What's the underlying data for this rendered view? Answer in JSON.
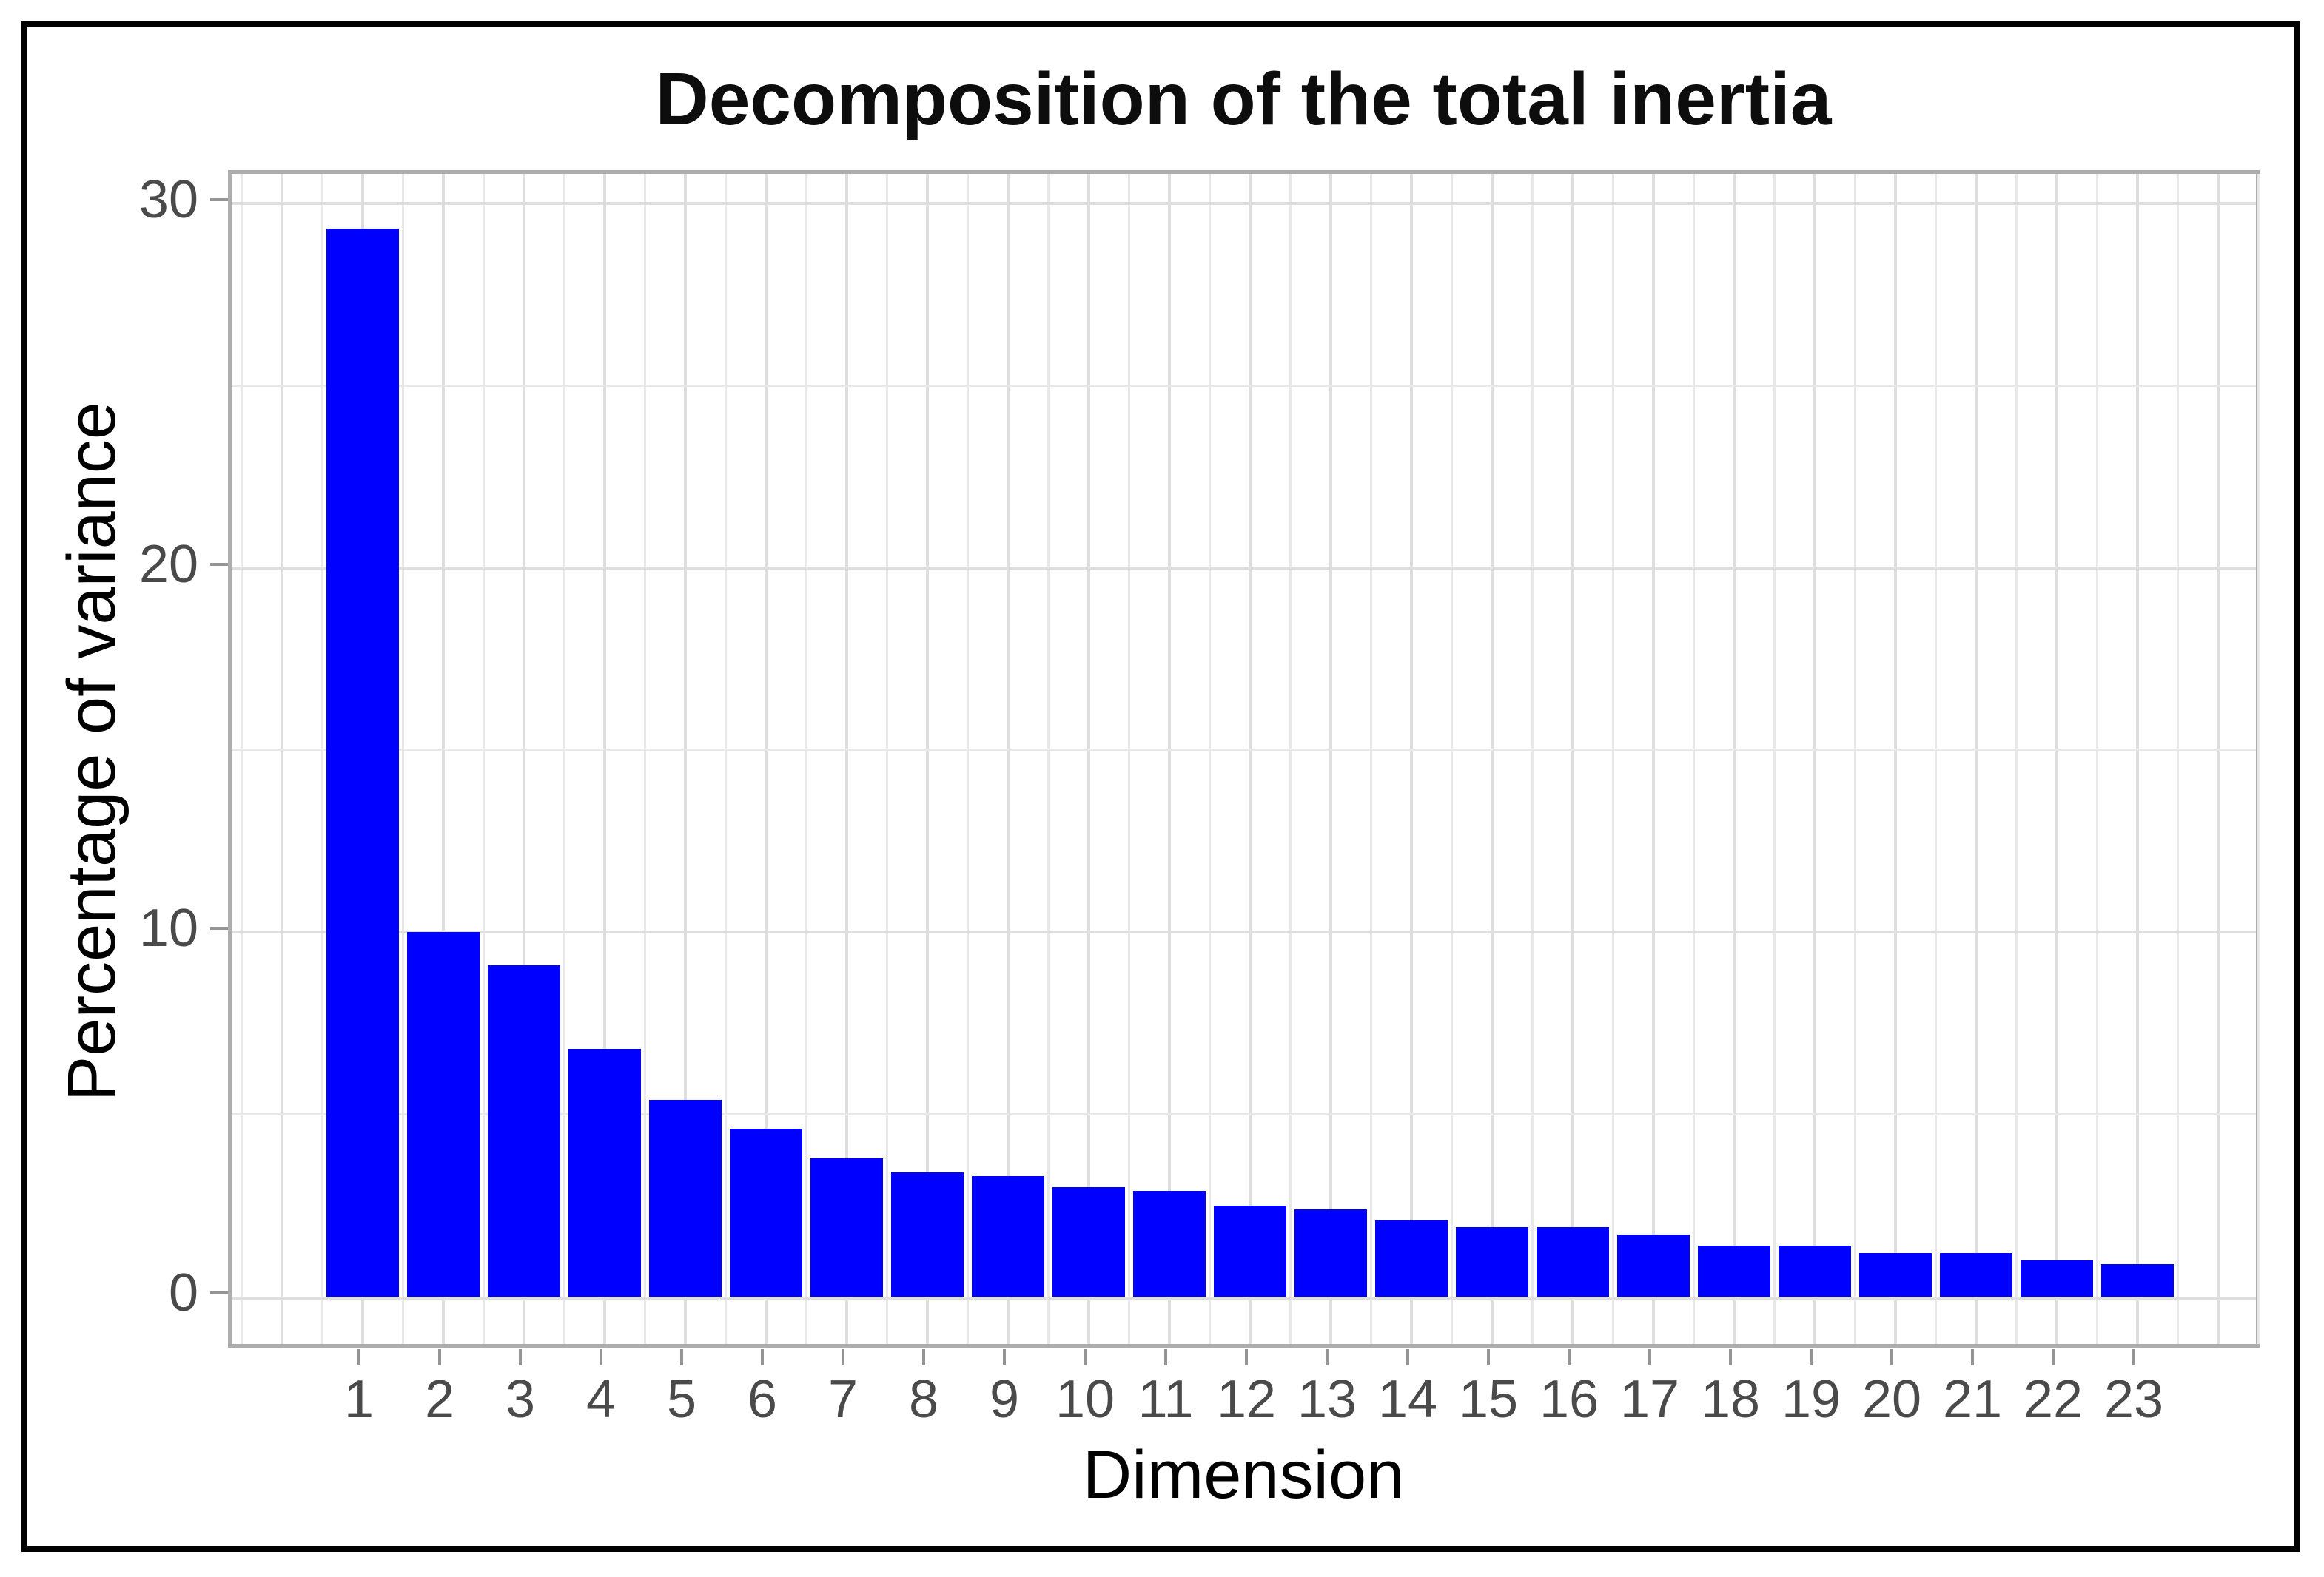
{
  "chart_data": {
    "type": "bar",
    "title": "Decomposition of the total inertia",
    "xlabel": "Dimension",
    "ylabel": "Percentage of variance",
    "categories": [
      "1",
      "2",
      "3",
      "4",
      "5",
      "6",
      "7",
      "8",
      "9",
      "10",
      "11",
      "12",
      "13",
      "14",
      "15",
      "16",
      "17",
      "18",
      "19",
      "20",
      "21",
      "22",
      "23"
    ],
    "values": [
      29.3,
      10,
      9.1,
      6.8,
      5.4,
      4.6,
      3.8,
      3.4,
      3.3,
      3.0,
      2.9,
      2.5,
      2.4,
      2.1,
      1.9,
      1.9,
      1.7,
      1.4,
      1.4,
      1.2,
      1.2,
      1.0,
      0.9
    ],
    "ylim": [
      -1.5,
      30.8
    ],
    "yticks": [
      0,
      10,
      20,
      30
    ],
    "ytick_labels": [
      "0",
      "10",
      "20",
      "30"
    ],
    "yminor": [
      5,
      15,
      25
    ],
    "grid": true,
    "legend": null,
    "bar_color": "#0000fe",
    "background_color": "#ffffff",
    "gridline_color": "#e4e4e4",
    "panel_border_color": "#adadad",
    "tick_label_color": "#4a4a4a"
  }
}
